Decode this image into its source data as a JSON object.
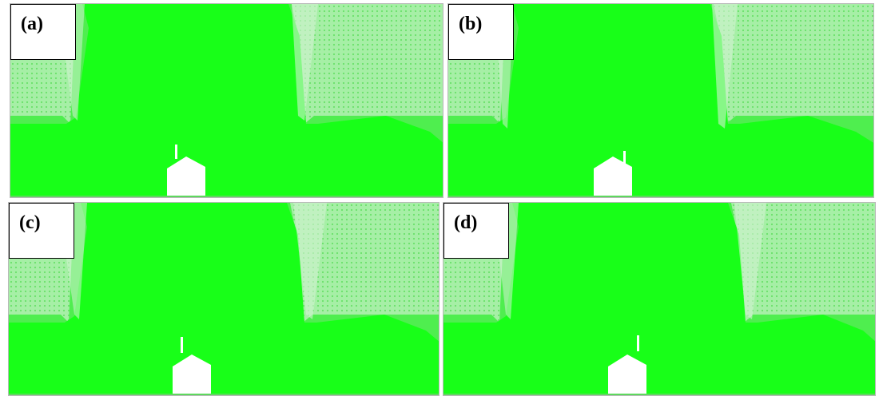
{
  "panels": [
    {
      "id": "a",
      "label": "(a)"
    },
    {
      "id": "b",
      "label": "(b)"
    },
    {
      "id": "c",
      "label": "(c)"
    },
    {
      "id": "d",
      "label": "(d)"
    }
  ],
  "colors": {
    "mesh_dense": "#18ff18",
    "mesh_medium": "#4fee4f",
    "mesh_coarse": "#a6efa6",
    "mesh_sparse": "#d2f2d2",
    "body": "#ffffff"
  },
  "icons": [
    "building-body",
    "antenna-mast"
  ]
}
